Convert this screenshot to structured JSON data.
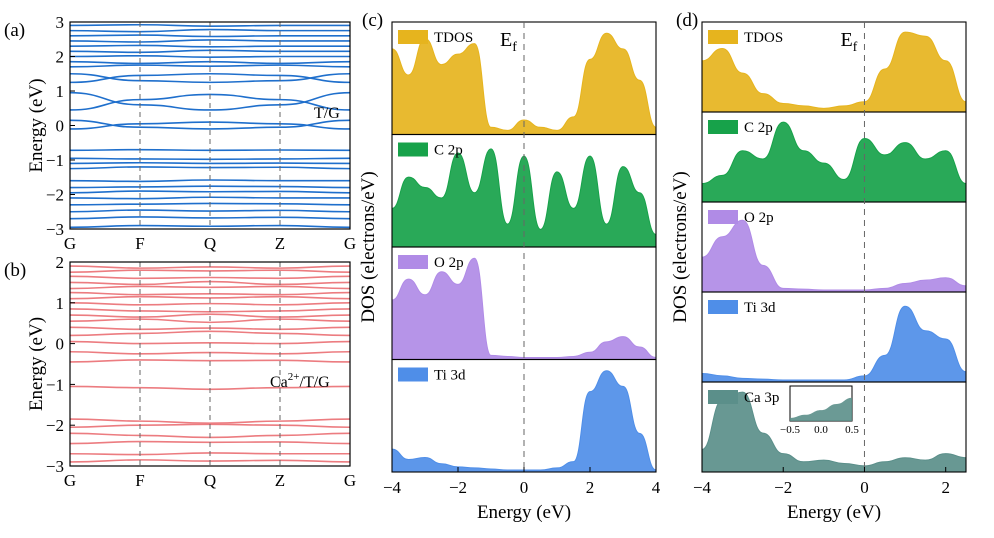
{
  "figure": {
    "colors": {
      "band_blue": "#1f6fcc",
      "band_red": "#ec7c80",
      "tdos": "#e6b41e",
      "c2p": "#17a24a",
      "o2p": "#b08be6",
      "ti3d": "#4f8ee8",
      "ca3p": "#5b8f8a",
      "frame": "#000000",
      "guide": "#666666"
    }
  },
  "chart_data": [
    {
      "id": "a",
      "type": "line",
      "panel_label": "(a)",
      "annotation": "T/G",
      "ylabel": "Energy (eV)",
      "xlabel": "",
      "kpath": [
        "G",
        "F",
        "Q",
        "Z",
        "G"
      ],
      "ylim": [
        -3,
        3
      ],
      "yticks": [
        -3,
        -2,
        -1,
        0,
        1,
        2,
        3
      ],
      "grid": false,
      "color": "#1f6fcc",
      "series": [
        {
          "values": [
            -2.95,
            -2.9,
            -2.92,
            -2.9,
            -2.95
          ]
        },
        {
          "values": [
            -2.7,
            -2.65,
            -2.68,
            -2.66,
            -2.7
          ]
        },
        {
          "values": [
            -2.5,
            -2.45,
            -2.48,
            -2.46,
            -2.5
          ]
        },
        {
          "values": [
            -2.3,
            -2.28,
            -2.26,
            -2.27,
            -2.3
          ]
        },
        {
          "values": [
            -2.1,
            -2.12,
            -2.08,
            -2.1,
            -2.1
          ]
        },
        {
          "values": [
            -1.95,
            -1.9,
            -1.92,
            -1.91,
            -1.95
          ]
        },
        {
          "values": [
            -1.8,
            -1.78,
            -1.76,
            -1.77,
            -1.8
          ]
        },
        {
          "values": [
            -1.6,
            -1.62,
            -1.58,
            -1.6,
            -1.6
          ]
        },
        {
          "values": [
            -1.25,
            -1.2,
            -1.22,
            -1.21,
            -1.25
          ]
        },
        {
          "values": [
            -1.1,
            -1.08,
            -1.1,
            -1.09,
            -1.1
          ]
        },
        {
          "values": [
            -0.95,
            -0.97,
            -0.98,
            -0.97,
            -0.95
          ]
        },
        {
          "values": [
            -0.72,
            -0.7,
            -0.72,
            -0.71,
            -0.72
          ]
        },
        {
          "values": [
            0.15,
            -0.05,
            -0.1,
            -0.05,
            0.15
          ]
        },
        {
          "values": [
            -0.1,
            0.05,
            0.1,
            0.05,
            -0.1
          ]
        },
        {
          "values": [
            0.95,
            0.6,
            0.45,
            0.6,
            0.95
          ]
        },
        {
          "values": [
            0.45,
            0.75,
            0.9,
            0.75,
            0.45
          ]
        },
        {
          "values": [
            1.5,
            1.3,
            1.25,
            1.3,
            1.5
          ]
        },
        {
          "values": [
            1.25,
            1.45,
            1.5,
            1.45,
            1.25
          ]
        },
        {
          "values": [
            1.7,
            1.75,
            1.72,
            1.75,
            1.7
          ]
        },
        {
          "values": [
            1.85,
            1.8,
            1.85,
            1.8,
            1.85
          ]
        },
        {
          "values": [
            2.0,
            2.02,
            1.98,
            2.0,
            2.0
          ]
        },
        {
          "values": [
            2.15,
            2.12,
            2.18,
            2.15,
            2.15
          ]
        },
        {
          "values": [
            2.3,
            2.32,
            2.28,
            2.3,
            2.3
          ]
        },
        {
          "values": [
            2.45,
            2.42,
            2.48,
            2.45,
            2.45
          ]
        },
        {
          "values": [
            2.6,
            2.62,
            2.58,
            2.6,
            2.6
          ]
        },
        {
          "values": [
            2.75,
            2.72,
            2.78,
            2.75,
            2.75
          ]
        },
        {
          "values": [
            2.9,
            2.92,
            2.88,
            2.9,
            2.9
          ]
        }
      ]
    },
    {
      "id": "b",
      "type": "line",
      "panel_label": "(b)",
      "annotation": "Ca2+/T/G",
      "ylabel": "Energy (eV)",
      "xlabel": "",
      "kpath": [
        "G",
        "F",
        "Q",
        "Z",
        "G"
      ],
      "ylim": [
        -3,
        2
      ],
      "yticks": [
        -3,
        -2,
        -1,
        0,
        1,
        2
      ],
      "grid": false,
      "color": "#ec7c80",
      "series": [
        {
          "values": [
            -2.9,
            -2.85,
            -2.88,
            -2.86,
            -2.9
          ]
        },
        {
          "values": [
            -2.7,
            -2.72,
            -2.68,
            -2.7,
            -2.7
          ]
        },
        {
          "values": [
            -2.45,
            -2.4,
            -2.42,
            -2.41,
            -2.45
          ]
        },
        {
          "values": [
            -2.2,
            -2.25,
            -2.3,
            -2.25,
            -2.2
          ]
        },
        {
          "values": [
            -2.05,
            -2.0,
            -1.98,
            -2.0,
            -2.05
          ]
        },
        {
          "values": [
            -1.85,
            -1.9,
            -1.95,
            -1.9,
            -1.85
          ]
        },
        {
          "values": [
            -1.05,
            -1.08,
            -1.12,
            -1.08,
            -1.05
          ]
        },
        {
          "values": [
            -0.45,
            -0.4,
            -0.42,
            -0.41,
            -0.45
          ]
        },
        {
          "values": [
            -0.2,
            -0.25,
            -0.22,
            -0.25,
            -0.2
          ]
        },
        {
          "values": [
            0.05,
            0.0,
            0.02,
            0.0,
            0.05
          ]
        },
        {
          "values": [
            0.2,
            0.25,
            0.3,
            0.25,
            0.2
          ]
        },
        {
          "values": [
            0.4,
            0.35,
            0.38,
            0.35,
            0.4
          ]
        },
        {
          "values": [
            0.55,
            0.6,
            0.52,
            0.6,
            0.55
          ]
        },
        {
          "values": [
            0.7,
            0.65,
            0.72,
            0.65,
            0.7
          ]
        },
        {
          "values": [
            0.85,
            0.8,
            0.78,
            0.8,
            0.85
          ]
        },
        {
          "values": [
            1.0,
            0.95,
            0.98,
            0.95,
            1.0
          ]
        },
        {
          "values": [
            1.1,
            1.15,
            1.12,
            1.15,
            1.1
          ]
        },
        {
          "values": [
            1.25,
            1.2,
            1.22,
            1.2,
            1.25
          ]
        },
        {
          "values": [
            1.35,
            1.4,
            1.38,
            1.4,
            1.35
          ]
        },
        {
          "values": [
            1.5,
            1.45,
            1.52,
            1.45,
            1.5
          ]
        },
        {
          "values": [
            1.65,
            1.6,
            1.62,
            1.6,
            1.65
          ]
        },
        {
          "values": [
            1.75,
            1.8,
            1.78,
            1.8,
            1.75
          ]
        },
        {
          "values": [
            1.9,
            1.85,
            1.88,
            1.85,
            1.9
          ]
        }
      ]
    },
    {
      "id": "c",
      "type": "area",
      "panel_label": "(c)",
      "ef_label": "E",
      "ef_sub": "f",
      "ylabel": "DOS (electrons/eV)",
      "xlabel": "Energy (eV)",
      "xlim": [
        -4,
        4
      ],
      "xticks": [
        -4,
        -2,
        0,
        2,
        4
      ],
      "grid": false,
      "x": [
        -4,
        -3.5,
        -3,
        -2.5,
        -2,
        -1.5,
        -1,
        -0.5,
        0,
        0.5,
        1,
        1.5,
        2,
        2.5,
        3,
        3.5,
        4
      ],
      "series": [
        {
          "name": "TDOS",
          "color": "#e6b41e",
          "values": [
            0.8,
            0.55,
            0.9,
            0.65,
            0.75,
            0.85,
            0.05,
            0.02,
            0.12,
            0.05,
            0.02,
            0.15,
            0.7,
            0.95,
            0.8,
            0.5,
            0.05
          ]
        },
        {
          "name": "C 2p",
          "color": "#17a24a",
          "values": [
            0.35,
            0.65,
            0.55,
            0.45,
            0.88,
            0.5,
            0.92,
            0.2,
            0.85,
            0.15,
            0.7,
            0.35,
            0.85,
            0.2,
            0.75,
            0.5,
            0.1
          ]
        },
        {
          "name": "O 2p",
          "color": "#b08be6",
          "values": [
            0.55,
            0.75,
            0.6,
            0.82,
            0.7,
            0.95,
            0.02,
            0.01,
            0.0,
            0.0,
            0.0,
            0.01,
            0.05,
            0.15,
            0.2,
            0.1,
            0.0
          ]
        },
        {
          "name": "Ti 3d",
          "color": "#4f8ee8",
          "values": [
            0.2,
            0.1,
            0.12,
            0.06,
            0.03,
            0.02,
            0.01,
            0.0,
            0.0,
            0.0,
            0.02,
            0.08,
            0.75,
            0.95,
            0.8,
            0.35,
            0.0
          ]
        }
      ]
    },
    {
      "id": "d",
      "type": "area",
      "panel_label": "(d)",
      "ef_label": "E",
      "ef_sub": "f",
      "ylabel": "DOS (electrons/eV)",
      "xlabel": "Energy (eV)",
      "xlim": [
        -4,
        2.5
      ],
      "xticks": [
        -4,
        -2,
        0,
        2
      ],
      "grid": false,
      "x": [
        -4,
        -3.5,
        -3,
        -2.5,
        -2,
        -1.5,
        -1,
        -0.5,
        0,
        0.5,
        1,
        1.5,
        2,
        2.5
      ],
      "series": [
        {
          "name": "TDOS",
          "color": "#e6b41e",
          "values": [
            0.6,
            0.75,
            0.45,
            0.2,
            0.08,
            0.05,
            0.02,
            0.05,
            0.1,
            0.5,
            0.95,
            0.9,
            0.6,
            0.1
          ]
        },
        {
          "name": "C 2p",
          "color": "#17a24a",
          "values": [
            0.2,
            0.3,
            0.6,
            0.5,
            0.95,
            0.6,
            0.45,
            0.25,
            0.75,
            0.55,
            0.7,
            0.5,
            0.6,
            0.2
          ]
        },
        {
          "name": "O 2p",
          "color": "#b08be6",
          "values": [
            0.4,
            0.65,
            0.85,
            0.3,
            0.02,
            0.01,
            0.0,
            0.0,
            0.0,
            0.02,
            0.08,
            0.12,
            0.15,
            0.05
          ]
        },
        {
          "name": "Ti 3d",
          "color": "#4f8ee8",
          "values": [
            0.08,
            0.05,
            0.02,
            0.01,
            0.0,
            0.0,
            0.0,
            0.0,
            0.05,
            0.3,
            0.9,
            0.6,
            0.5,
            0.1
          ]
        },
        {
          "name": "Ca 3p",
          "color": "#5b8f8a",
          "values": [
            0.25,
            0.85,
            0.95,
            0.45,
            0.2,
            0.1,
            0.12,
            0.08,
            0.05,
            0.1,
            0.15,
            0.12,
            0.2,
            0.15
          ]
        }
      ],
      "inset": {
        "xlim": [
          -0.5,
          0.5
        ],
        "xticks": [
          -0.5,
          0.0,
          0.5
        ],
        "xtick_labels": [
          "-0.5",
          "0.0",
          "0.5"
        ],
        "x": [
          -0.5,
          -0.25,
          0.0,
          0.25,
          0.5
        ],
        "values": [
          0.1,
          0.2,
          0.35,
          0.55,
          0.75
        ]
      }
    }
  ]
}
